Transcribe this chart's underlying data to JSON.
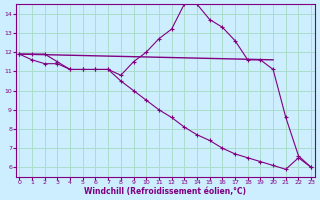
{
  "bg_color": "#cceeff",
  "line_color": "#800080",
  "grid_color": "#aaddcc",
  "xlabel": "Windchill (Refroidissement éolien,°C)",
  "xlabel_color": "#800080",
  "tick_color": "#800080",
  "xlim": [
    0,
    23
  ],
  "ylim": [
    5.5,
    14.5
  ],
  "yticks": [
    6,
    7,
    8,
    9,
    10,
    11,
    12,
    13,
    14
  ],
  "xticks": [
    0,
    1,
    2,
    3,
    4,
    5,
    6,
    7,
    8,
    9,
    10,
    11,
    12,
    13,
    14,
    15,
    16,
    17,
    18,
    19,
    20,
    21,
    22,
    23
  ],
  "line1_x": [
    0,
    1,
    2,
    3,
    4,
    5,
    6,
    7,
    8,
    9,
    10,
    11,
    12,
    13,
    14,
    15,
    16,
    17,
    18,
    19,
    20,
    21,
    22,
    23
  ],
  "line1_y": [
    11.9,
    11.9,
    11.9,
    11.5,
    11.1,
    11.1,
    11.1,
    11.1,
    10.8,
    11.5,
    12.0,
    12.7,
    13.2,
    14.5,
    14.5,
    13.7,
    13.3,
    12.6,
    11.6,
    11.6,
    11.1,
    8.6,
    6.6,
    6.0
  ],
  "line2_x": [
    0,
    20
  ],
  "line2_y": [
    11.9,
    11.6
  ],
  "line3_x": [
    0,
    1,
    2,
    3,
    4,
    5,
    6,
    7,
    8,
    9,
    10,
    11,
    12,
    13,
    14,
    15,
    16,
    17,
    18,
    19,
    20,
    21,
    22,
    23
  ],
  "line3_y": [
    11.9,
    11.6,
    11.4,
    11.4,
    11.1,
    11.1,
    11.1,
    11.1,
    10.5,
    10.0,
    9.5,
    9.0,
    8.6,
    8.1,
    7.7,
    7.4,
    7.0,
    6.7,
    6.5,
    6.3,
    6.1,
    5.9,
    6.5,
    6.0
  ]
}
